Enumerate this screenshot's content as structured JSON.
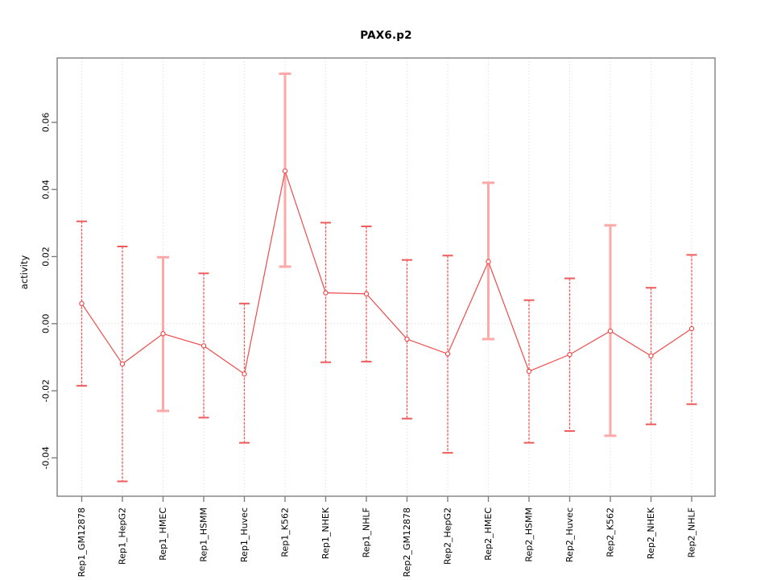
{
  "chart_data": {
    "type": "line",
    "title": "PAX6.p2",
    "ylabel": "activity",
    "xlabel": "",
    "legend": "none",
    "marker": "open-circle",
    "grid": {
      "vertical": "dotted-at-each-category",
      "horizontal_at": 0
    },
    "ylim": [
      -0.0515,
      0.0792
    ],
    "yticks": [
      -0.04,
      -0.02,
      0,
      0.02,
      0.04,
      0.06
    ],
    "ytick_labels": [
      "-0.04",
      "-0.02",
      "0.00",
      "0.02",
      "0.04",
      "0.06"
    ],
    "categories": [
      "Rep1_GM12878",
      "Rep1_HepG2",
      "Rep1_HMEC",
      "Rep1_HSMM",
      "Rep1_Huvec",
      "Rep1_K562",
      "Rep1_NHEK",
      "Rep1_NHLF",
      "Rep2_GM12878",
      "Rep2_HepG2",
      "Rep2_HMEC",
      "Rep2_HSMM",
      "Rep2_Huvec",
      "Rep2_K562",
      "Rep2_NHEK",
      "Rep2_NHLF"
    ],
    "series": [
      {
        "name": "activity",
        "values": [
          0.006,
          -0.012,
          -0.003,
          -0.0066,
          -0.015,
          0.0455,
          0.0092,
          0.0089,
          -0.0046,
          -0.009,
          0.0185,
          -0.0142,
          -0.0092,
          -0.0022,
          -0.0096,
          -0.0015
        ],
        "err_hi": [
          0.0305,
          0.023,
          0.0198,
          0.015,
          0.006,
          0.0745,
          0.0301,
          0.029,
          0.019,
          0.0203,
          0.042,
          0.007,
          0.0135,
          0.0293,
          0.0107,
          0.0205
        ],
        "err_lo": [
          -0.0185,
          -0.047,
          -0.026,
          -0.028,
          -0.0355,
          0.017,
          -0.0115,
          -0.0113,
          -0.0283,
          -0.0385,
          -0.0046,
          -0.0355,
          -0.032,
          -0.0334,
          -0.03,
          -0.024
        ]
      }
    ],
    "emphasized": [
      false,
      false,
      true,
      false,
      false,
      true,
      false,
      false,
      false,
      false,
      true,
      false,
      false,
      true,
      false,
      false
    ],
    "colors": {
      "line": "#ee4c4c",
      "marker_stroke": "#ee4c4c",
      "marker_fill": "#ffffff",
      "errorbar_thin": "#f15a5a",
      "errorbar_thick": "#ffa8a8",
      "grid": "#d8d8d8",
      "box": "#7f7f7f",
      "text": "#000000"
    }
  }
}
